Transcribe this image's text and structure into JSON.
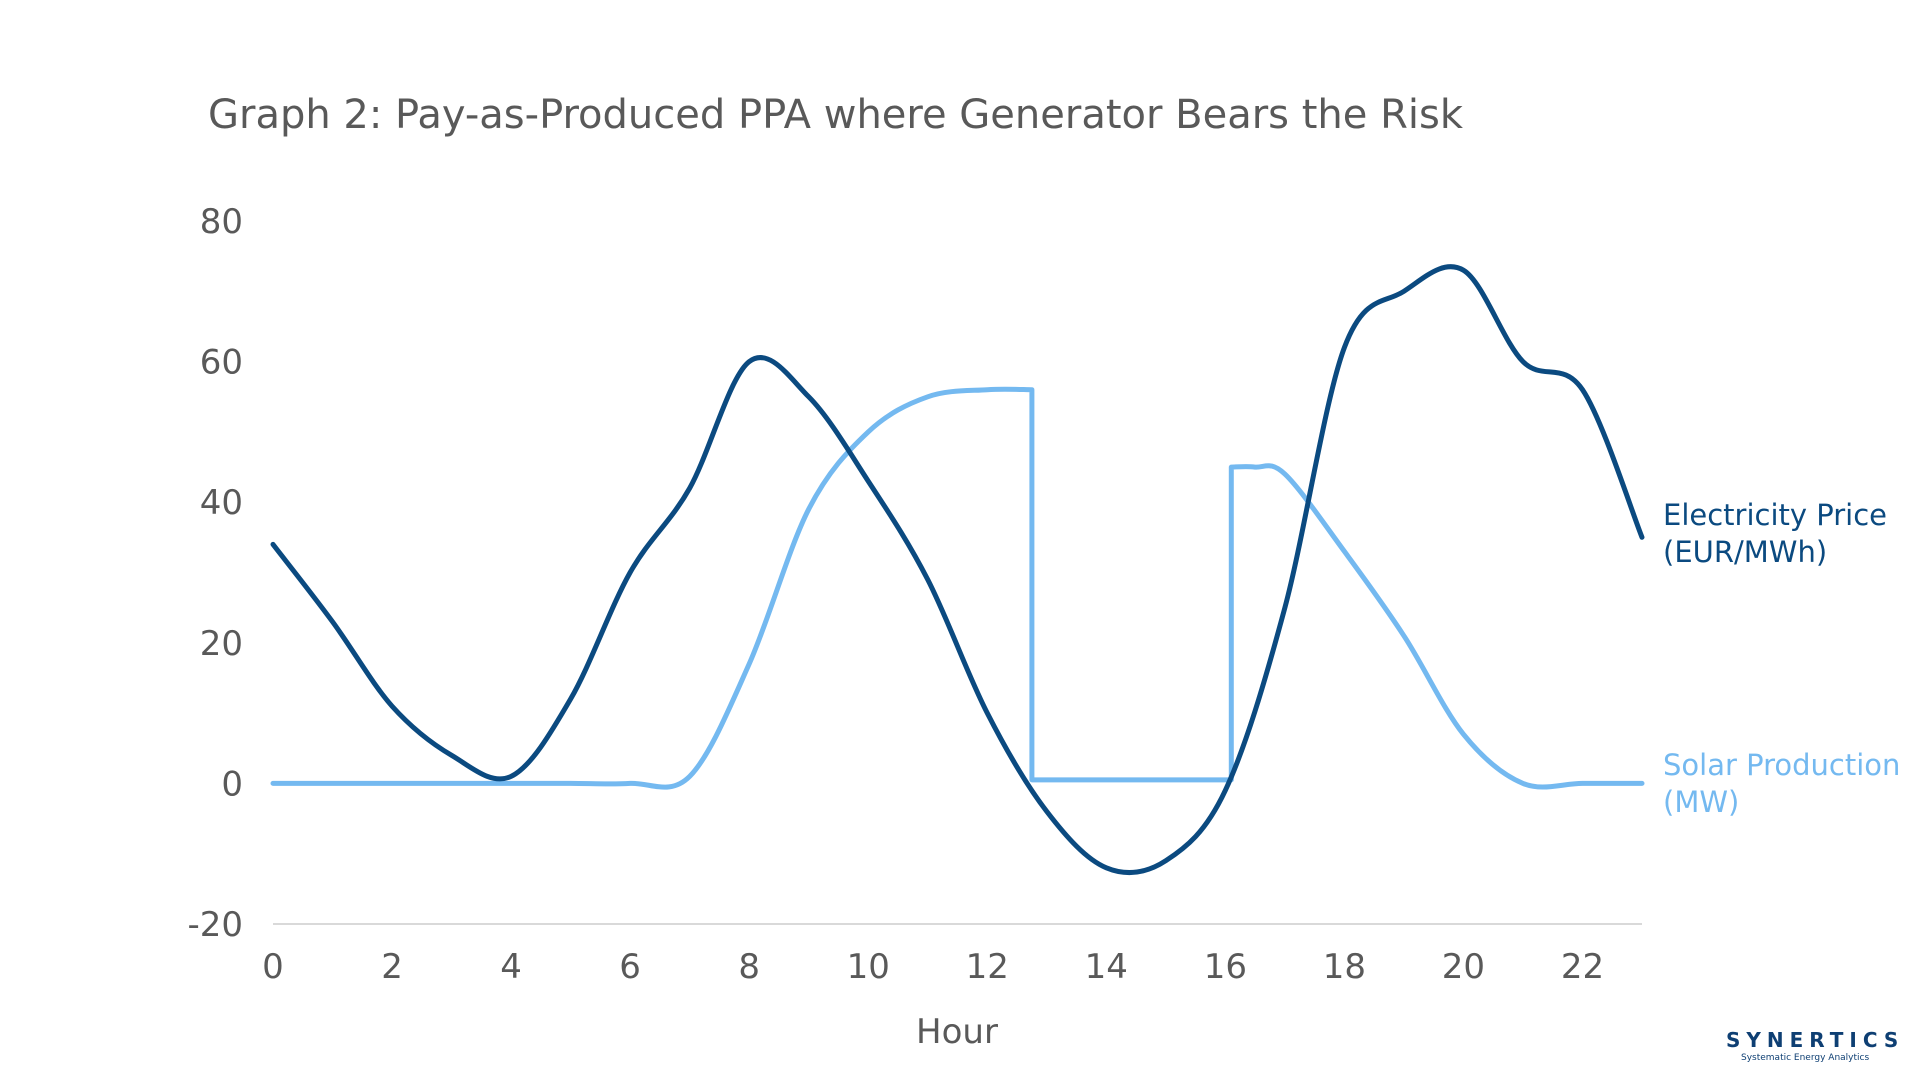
{
  "brand": {
    "name": "SYNERTICS",
    "tagline": "Systematic Energy Analytics",
    "color": "#0e3f73"
  },
  "chart_data": {
    "type": "line",
    "title": "Graph 2: Pay-as-Produced PPA where Generator Bears the Risk",
    "xlabel": "Hour",
    "ylabel": "",
    "xlim": [
      0,
      23
    ],
    "ylim": [
      -20,
      80
    ],
    "xticks": [
      "0",
      "2",
      "4",
      "6",
      "8",
      "10",
      "12",
      "14",
      "16",
      "18",
      "20",
      "22"
    ],
    "yticks": [
      "80",
      "60",
      "40",
      "20",
      "0",
      "-20"
    ],
    "grid": false,
    "legend": "inline-right",
    "series": [
      {
        "name_line1": "Electricity Price",
        "name_line2": "(EUR/MWh)",
        "color": "#0b4a80",
        "x": [
          0,
          1,
          2,
          3,
          4,
          5,
          6,
          7,
          8,
          9,
          10,
          11,
          12,
          13,
          14,
          15,
          16,
          17,
          18,
          19,
          20,
          21,
          22,
          23
        ],
        "y": [
          34,
          23,
          11,
          4,
          1,
          12,
          30,
          42,
          60,
          55,
          43,
          29,
          10,
          -4,
          -12,
          -11,
          -1,
          25,
          62,
          70,
          73,
          60,
          56,
          35
        ]
      },
      {
        "name_line1": "Solar Production",
        "name_line2": "(MW)",
        "color": "#74b9f0",
        "x": [
          0,
          1,
          2,
          3,
          4,
          5,
          6,
          7,
          8,
          9,
          10,
          11,
          12,
          12.75,
          12.75,
          16.1,
          16.1,
          16.5,
          17,
          18,
          19,
          20,
          21,
          22,
          23
        ],
        "y": [
          0,
          0,
          0,
          0,
          0,
          0,
          0,
          1,
          17,
          39,
          50,
          55,
          56,
          56,
          0.5,
          0.5,
          45,
          45,
          44,
          33,
          21,
          7,
          0,
          0,
          0
        ]
      }
    ]
  }
}
